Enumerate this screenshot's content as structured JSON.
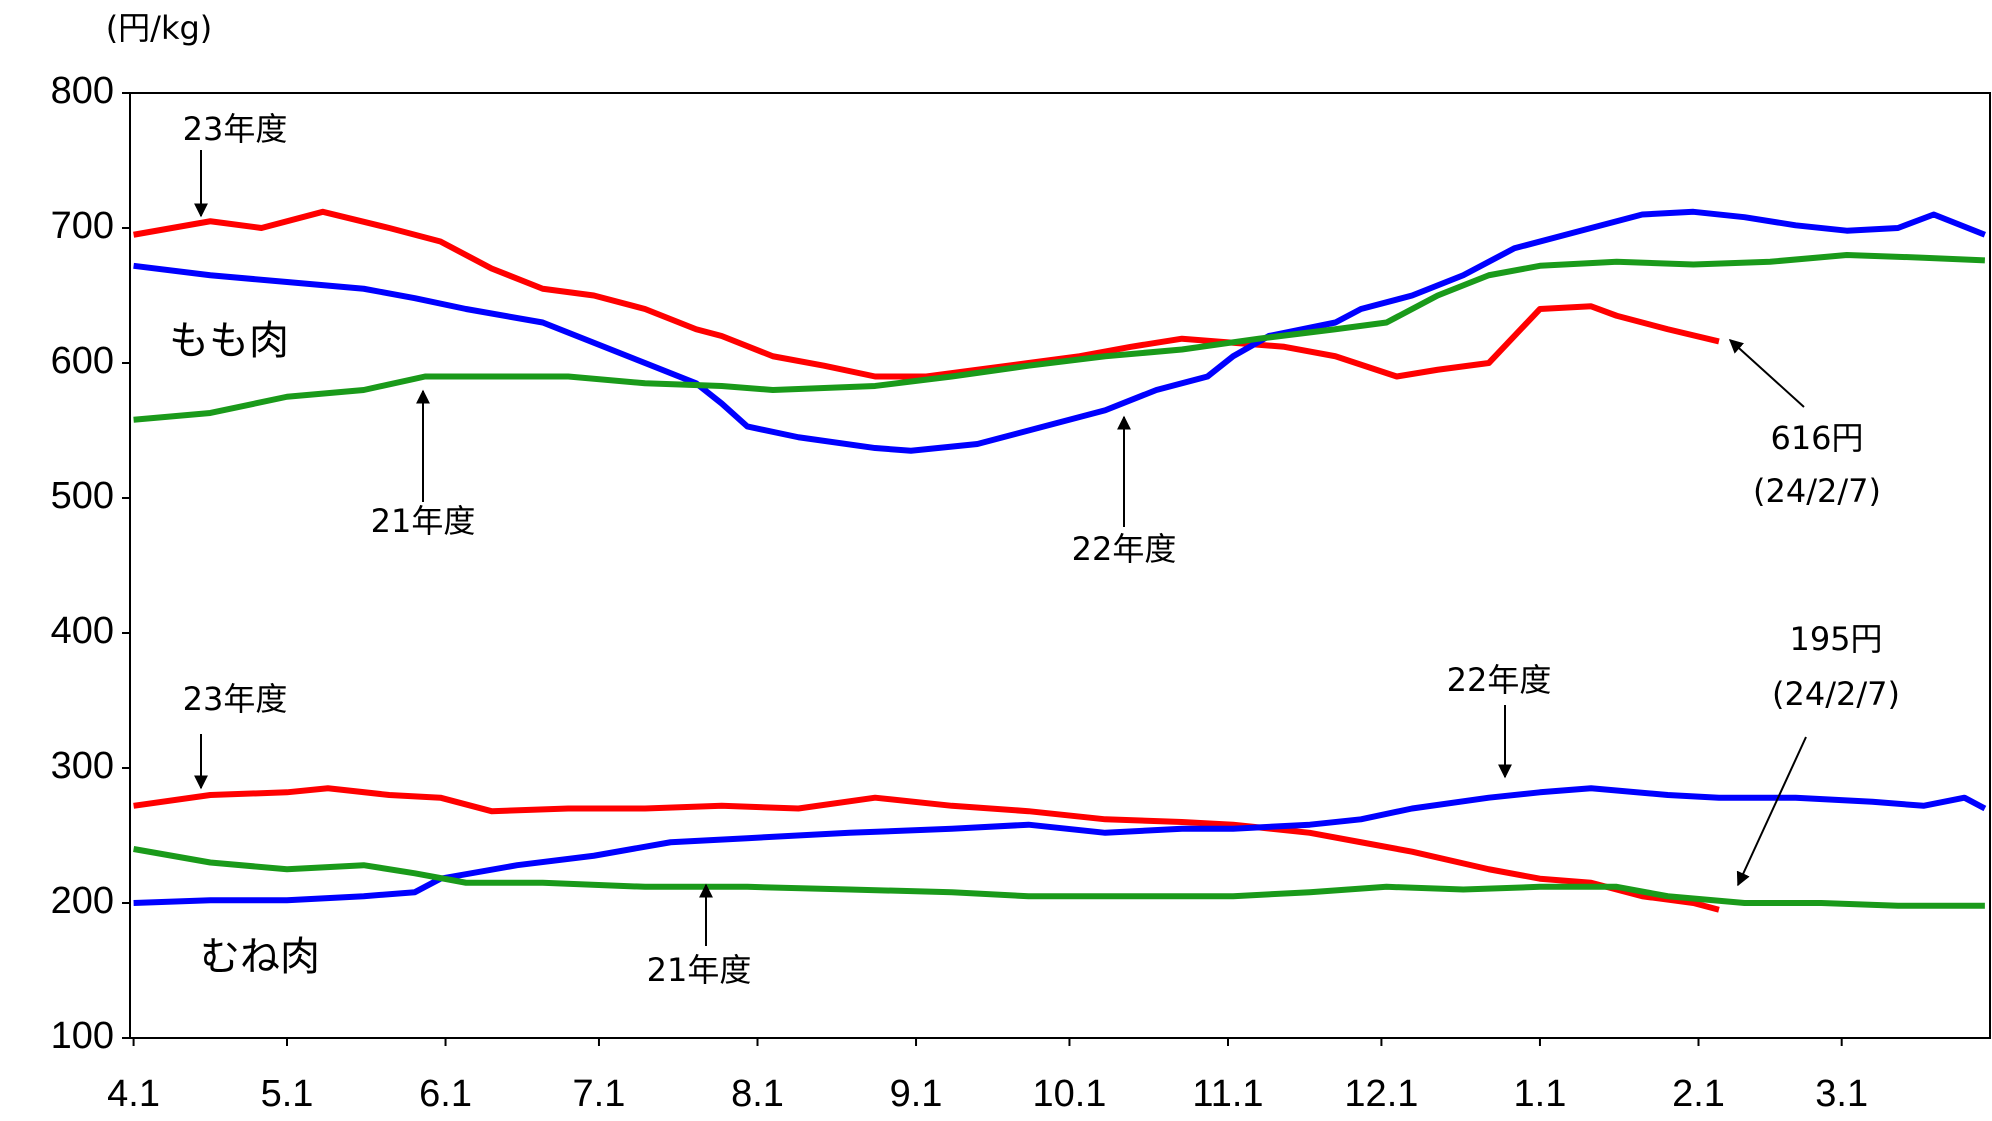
{
  "chart_data": {
    "type": "line",
    "unit_label": "(円/kg)",
    "xlim": [
      -0.7,
      363
    ],
    "ylim": [
      100,
      800
    ],
    "yticks": [
      100,
      200,
      300,
      400,
      500,
      600,
      700,
      800
    ],
    "xticks": [
      {
        "value": 0,
        "label": "4.1"
      },
      {
        "value": 30,
        "label": "5.1"
      },
      {
        "value": 61,
        "label": "6.1"
      },
      {
        "value": 91,
        "label": "7.1"
      },
      {
        "value": 122,
        "label": "8.1"
      },
      {
        "value": 153,
        "label": "9.1"
      },
      {
        "value": 183,
        "label": "10.1"
      },
      {
        "value": 214,
        "label": "11.1"
      },
      {
        "value": 244,
        "label": "12.1"
      },
      {
        "value": 275,
        "label": "1.1"
      },
      {
        "value": 306,
        "label": "2.1"
      },
      {
        "value": 334,
        "label": "3.1"
      }
    ],
    "grid": false,
    "groups": [
      "もも肉",
      "むね肉"
    ],
    "series": [
      {
        "name": "23年度",
        "color": "#ff0000",
        "x": [
          0,
          15,
          25,
          37,
          50,
          60,
          70,
          80,
          90,
          100,
          110,
          115,
          125,
          135,
          145,
          155,
          165,
          175,
          185,
          195,
          205,
          215,
          225,
          235,
          247,
          255,
          265,
          275,
          285,
          290,
          300,
          310
        ],
        "values": [
          695,
          705,
          700,
          712,
          700,
          690,
          670,
          655,
          650,
          640,
          625,
          620,
          605,
          598,
          590,
          590,
          595,
          600,
          605,
          612,
          618,
          615,
          612,
          605,
          590,
          595,
          600,
          640,
          642,
          635,
          625,
          616
        ]
      },
      {
        "name": "22年度",
        "color": "#0000ff",
        "x": [
          0,
          15,
          30,
          45,
          55,
          65,
          80,
          90,
          100,
          110,
          115,
          120,
          130,
          145,
          152,
          165,
          170,
          180,
          190,
          200,
          210,
          215,
          222,
          235,
          240,
          250,
          260,
          270,
          285,
          295,
          305,
          315,
          325,
          335,
          345,
          352,
          362
        ],
        "values": [
          672,
          665,
          660,
          655,
          648,
          640,
          630,
          615,
          600,
          585,
          570,
          553,
          545,
          537,
          535,
          540,
          545,
          555,
          565,
          580,
          590,
          605,
          620,
          630,
          640,
          650,
          665,
          685,
          700,
          710,
          712,
          708,
          702,
          698,
          700,
          710,
          695
        ]
      },
      {
        "name": "21年度",
        "color": "#1a9a1a",
        "x": [
          0,
          15,
          30,
          45,
          57,
          70,
          85,
          100,
          115,
          125,
          145,
          160,
          175,
          190,
          205,
          220,
          235,
          245,
          255,
          265,
          275,
          290,
          305,
          320,
          335,
          350,
          362
        ],
        "values": [
          558,
          563,
          575,
          580,
          590,
          590,
          590,
          585,
          583,
          580,
          583,
          590,
          598,
          605,
          610,
          618,
          625,
          630,
          650,
          665,
          672,
          675,
          673,
          675,
          680,
          678,
          676
        ]
      },
      {
        "name": "23年度",
        "color": "#ff0000",
        "x": [
          0,
          15,
          30,
          38,
          50,
          60,
          70,
          85,
          100,
          115,
          130,
          145,
          160,
          175,
          190,
          205,
          215,
          230,
          240,
          250,
          265,
          275,
          285,
          295,
          305,
          310
        ],
        "values": [
          272,
          280,
          282,
          285,
          280,
          278,
          268,
          270,
          270,
          272,
          270,
          278,
          272,
          268,
          262,
          260,
          258,
          252,
          245,
          238,
          225,
          218,
          215,
          205,
          200,
          195
        ]
      },
      {
        "name": "22年度",
        "color": "#0000ff",
        "x": [
          0,
          15,
          30,
          45,
          55,
          60,
          75,
          90,
          105,
          120,
          140,
          160,
          175,
          190,
          205,
          215,
          230,
          240,
          250,
          265,
          275,
          285,
          300,
          310,
          325,
          340,
          350,
          358,
          362
        ],
        "values": [
          200,
          202,
          202,
          205,
          208,
          218,
          228,
          235,
          245,
          248,
          252,
          255,
          258,
          252,
          255,
          255,
          258,
          262,
          270,
          278,
          282,
          285,
          280,
          278,
          278,
          275,
          272,
          278,
          270
        ]
      },
      {
        "name": "21年度",
        "color": "#1a9a1a",
        "x": [
          0,
          15,
          30,
          45,
          55,
          65,
          80,
          100,
          120,
          140,
          160,
          175,
          190,
          205,
          215,
          230,
          245,
          260,
          275,
          290,
          300,
          315,
          330,
          345,
          362
        ],
        "values": [
          240,
          230,
          225,
          228,
          222,
          215,
          215,
          212,
          212,
          210,
          208,
          205,
          205,
          205,
          205,
          208,
          212,
          210,
          212,
          212,
          205,
          200,
          200,
          198,
          198
        ]
      }
    ],
    "annotations": [
      {
        "text": "616円"
      },
      {
        "text": "(24/2/7)"
      },
      {
        "text": "195円"
      },
      {
        "text": "(24/2/7)"
      }
    ]
  }
}
